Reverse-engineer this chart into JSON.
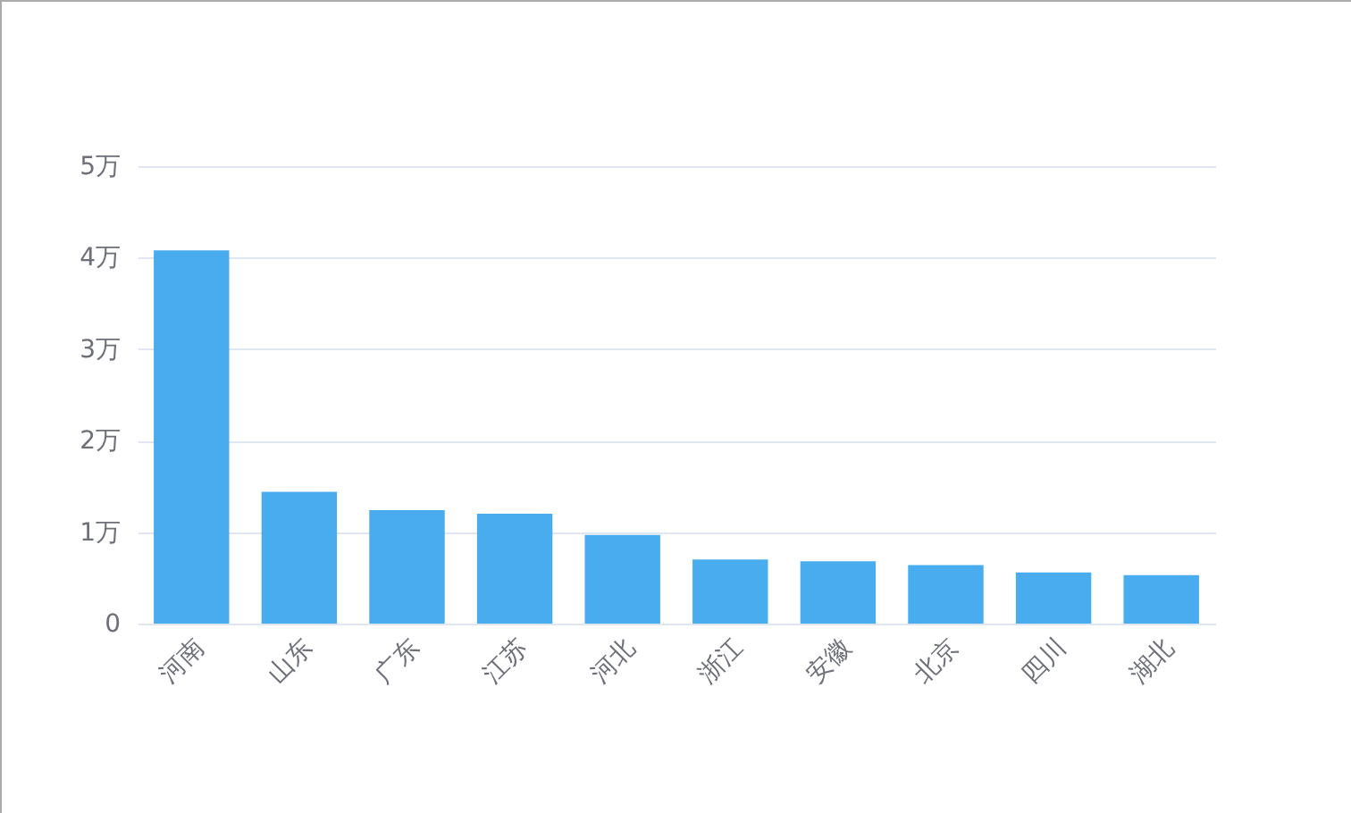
{
  "chart_data": {
    "type": "bar",
    "categories": [
      "河南",
      "山东",
      "广东",
      "江苏",
      "河北",
      "浙江",
      "安徽",
      "北京",
      "四川",
      "湖北"
    ],
    "values": [
      4.08,
      1.44,
      1.24,
      1.2,
      0.97,
      0.7,
      0.68,
      0.64,
      0.56,
      0.53
    ],
    "color": "#48acee",
    "ylim": [
      0,
      5
    ],
    "yticks": [
      0,
      {
        "value": 1,
        "label": "1万"
      },
      {
        "value": 2,
        "label": "2万"
      },
      {
        "value": 3,
        "label": "3万"
      },
      {
        "value": 4,
        "label": "4万"
      },
      {
        "value": 5,
        "label": "5万"
      }
    ],
    "grid": "y"
  }
}
